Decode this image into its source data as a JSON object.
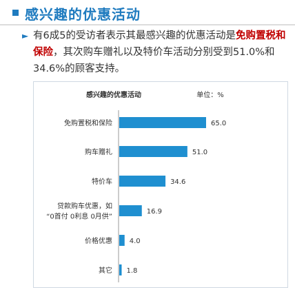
{
  "header": {
    "title": "感兴趣的优惠活动"
  },
  "summary": {
    "bullet": "►",
    "part1": "有6成5的受访者表示其最感兴趣的优惠活动是",
    "highlight": "免购置税和保险",
    "part2": "，其次购车赠礼以及特价车活动分别受到51.0%和34.6%的顾客支持。"
  },
  "chart_data": {
    "type": "bar",
    "orientation": "horizontal",
    "title": "感兴趣的优惠活动",
    "unit_label": "单位：%",
    "categories": [
      "免购置税和保险",
      "购车赠礼",
      "特价车",
      "贷款购车优惠，如\n“0首付 0利息 0月供”",
      "价格优惠",
      "其它"
    ],
    "values": [
      65.0,
      51.0,
      34.6,
      16.9,
      4.0,
      1.8
    ],
    "value_labels": [
      "65.0",
      "51.0",
      "34.6",
      "16.9",
      "4.0",
      "1.8"
    ],
    "bar_color": "#1f8fd0",
    "grid": false,
    "legend": "none"
  }
}
